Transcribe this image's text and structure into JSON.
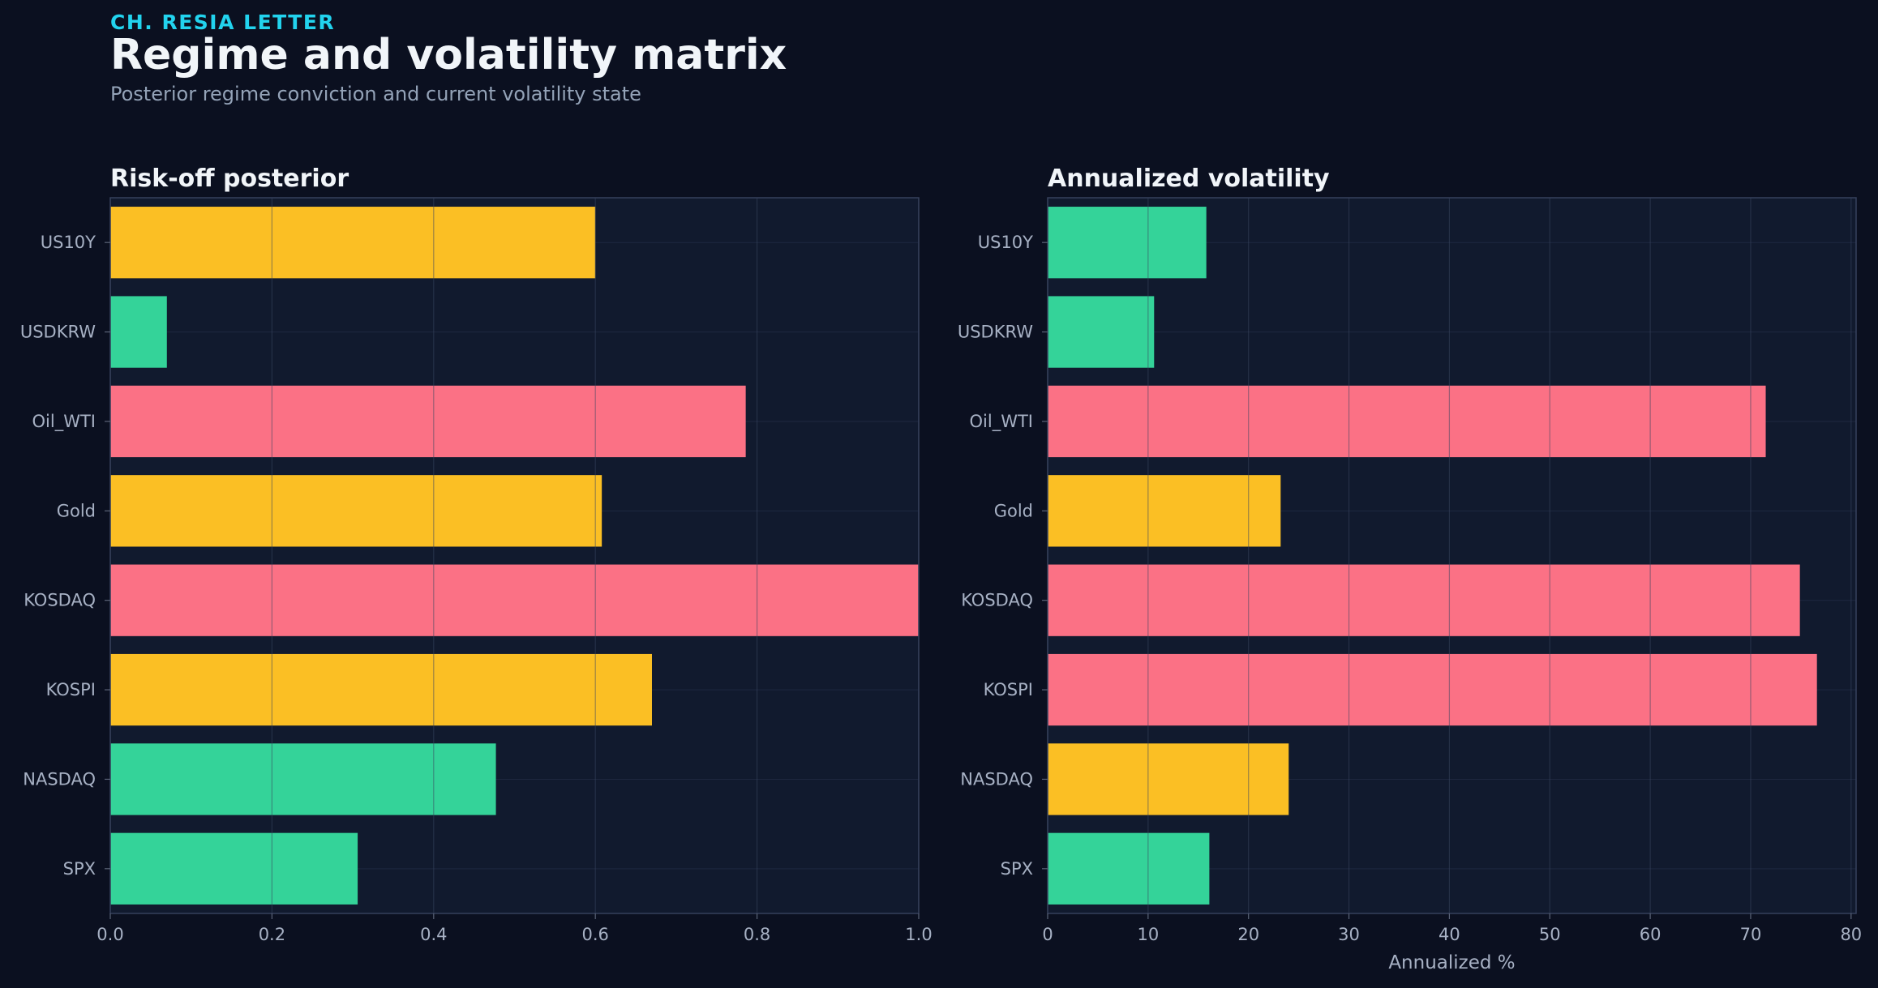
{
  "header": {
    "kicker": "CH. RESIA LETTER",
    "title": "Regime and volatility matrix",
    "subtitle": "Posterior regime conviction and current volatility state"
  },
  "colors": {
    "background": "#0b1020",
    "panel": "#111a2e",
    "risk_off": "#fb7185",
    "neutral": "#fbbf24",
    "risk_on": "#34d399"
  },
  "chart_data": [
    {
      "type": "bar",
      "orientation": "horizontal",
      "title": "Risk-off posterior",
      "xlabel": "",
      "ylabel": "",
      "xlim": [
        0,
        1.0
      ],
      "xticks": [
        "0.0",
        "0.2",
        "0.4",
        "0.6",
        "0.8",
        "1.0"
      ],
      "grid": true,
      "categories": [
        "US10Y",
        "USDKRW",
        "Oil_WTI",
        "Gold",
        "KOSDAQ",
        "KOSPI",
        "NASDAQ",
        "SPX"
      ],
      "values": [
        0.6,
        0.07,
        0.786,
        0.608,
        1.0,
        0.67,
        0.477,
        0.306
      ],
      "bar_colors": [
        "#fbbf24",
        "#34d399",
        "#fb7185",
        "#fbbf24",
        "#fb7185",
        "#fbbf24",
        "#34d399",
        "#34d399"
      ]
    },
    {
      "type": "bar",
      "orientation": "horizontal",
      "title": "Annualized volatility",
      "xlabel": "Annualized %",
      "ylabel": "",
      "xlim": [
        0,
        80.5
      ],
      "xticks": [
        "0",
        "10",
        "20",
        "30",
        "40",
        "50",
        "60",
        "70",
        "80"
      ],
      "grid": true,
      "categories": [
        "US10Y",
        "USDKRW",
        "Oil_WTI",
        "Gold",
        "KOSDAQ",
        "KOSPI",
        "NASDAQ",
        "SPX"
      ],
      "values": [
        15.8,
        10.6,
        71.5,
        23.2,
        74.9,
        76.6,
        24.0,
        16.1
      ],
      "bar_colors": [
        "#34d399",
        "#34d399",
        "#fb7185",
        "#fbbf24",
        "#fb7185",
        "#fb7185",
        "#fbbf24",
        "#34d399"
      ]
    }
  ]
}
